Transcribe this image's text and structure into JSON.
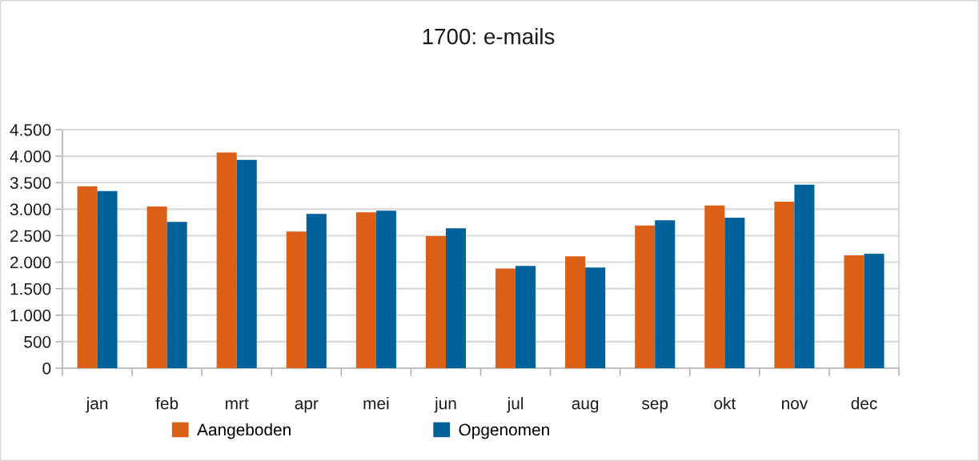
{
  "chart_data": {
    "type": "bar",
    "title": "1700: e-mails",
    "categories": [
      "jan",
      "feb",
      "mrt",
      "apr",
      "mei",
      "jun",
      "jul",
      "aug",
      "sep",
      "okt",
      "nov",
      "dec"
    ],
    "series": [
      {
        "name": "Aangeboden",
        "color": "#db6015",
        "values": [
          3430,
          3050,
          4070,
          2580,
          2940,
          2490,
          1880,
          2110,
          2690,
          3070,
          3140,
          2130
        ]
      },
      {
        "name": "Opgenomen",
        "color": "#00629a",
        "values": [
          3340,
          2760,
          3930,
          2910,
          2970,
          2640,
          1930,
          1900,
          2790,
          2840,
          3460,
          2160
        ]
      }
    ],
    "ylim": [
      0,
      4500
    ],
    "yticks": [
      0,
      500,
      {
        "value": 1000,
        "label": "1.000"
      },
      {
        "value": 1500,
        "label": "1.500"
      },
      {
        "value": 2000,
        "label": "2.000"
      },
      {
        "value": 2500,
        "label": "2.500"
      },
      {
        "value": 3000,
        "label": "3.000"
      },
      {
        "value": 3500,
        "label": "3.500"
      },
      {
        "value": 4000,
        "label": "4.000"
      },
      {
        "value": 4500,
        "label": "4.500"
      }
    ],
    "grid": "y",
    "legend": "bottom"
  }
}
